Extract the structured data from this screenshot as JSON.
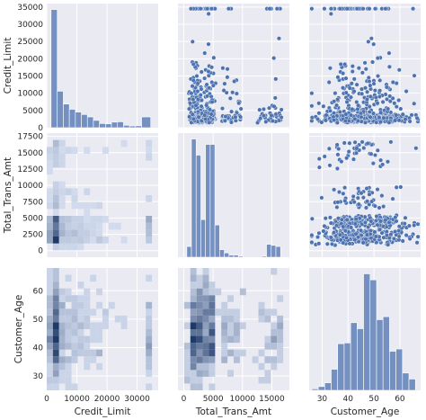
{
  "chart_data": {
    "type": "pairplot",
    "variables": [
      "Credit_Limit",
      "Total_Trans_Amt",
      "Customer_Age"
    ],
    "ranges": {
      "Credit_Limit": [
        0,
        36000
      ],
      "Total_Trans_Amt": [
        -1000,
        18000
      ],
      "Customer_Age": [
        25,
        68
      ]
    },
    "x_ranges": {
      "Credit_Limit": [
        0,
        37000
      ],
      "Total_Trans_Amt": [
        -1000,
        18000
      ],
      "Customer_Age": [
        25,
        68
      ]
    },
    "ticks": {
      "Credit_Limit_x": [
        "0",
        "10000",
        "20000",
        "30000"
      ],
      "Credit_Limit_y": [
        "0",
        "5000",
        "10000",
        "15000",
        "20000",
        "25000",
        "30000",
        "35000"
      ],
      "Total_Trans_Amt_x": [
        "0",
        "5000",
        "10000",
        "15000"
      ],
      "Total_Trans_Amt_y": [
        "0",
        "2500",
        "5000",
        "7500",
        "10000",
        "12500",
        "15000",
        "17500"
      ],
      "Customer_Age_x": [
        "30",
        "40",
        "50",
        "60"
      ],
      "Customer_Age_y": [
        "30",
        "40",
        "50",
        "60"
      ]
    },
    "histograms": {
      "Credit_Limit": {
        "bins": [
          1438,
          3500,
          5500,
          7500,
          9500,
          11500,
          13500,
          15500,
          17500,
          19500,
          21500,
          23500,
          25500,
          27500,
          29500,
          31500,
          34516
        ],
        "counts": [
          34000,
          10500,
          6800,
          5300,
          4500,
          3800,
          3100,
          2100,
          1200,
          1100,
          1600,
          1700,
          700,
          500,
          550,
          3100
        ]
      },
      "Total_Trans_Amt": {
        "bins": [
          510,
          1300,
          2100,
          2900,
          3700,
          4500,
          5300,
          6100,
          6900,
          7700,
          8500,
          9300,
          10100,
          10900,
          11700,
          12500,
          13300,
          14100,
          14900,
          15700,
          16500
        ],
        "counts": [
          1000,
          11000,
          9500,
          3500,
          10500,
          10500,
          3000,
          700,
          400,
          200,
          200,
          100,
          0,
          0,
          0,
          0,
          100,
          1200,
          1100,
          1000
        ]
      },
      "Customer_Age": {
        "bins": [
          26,
          28.5,
          31,
          33.5,
          36,
          38.5,
          41,
          43.5,
          46,
          48.5,
          51,
          53.5,
          56,
          58.5,
          61,
          63.5,
          66
        ],
        "counts": [
          20,
          50,
          100,
          280,
          620,
          630,
          900,
          820,
          1550,
          1470,
          940,
          980,
          520,
          550,
          230,
          150
        ]
      }
    },
    "series": [
      {
        "name": "",
        "values": []
      }
    ]
  }
}
